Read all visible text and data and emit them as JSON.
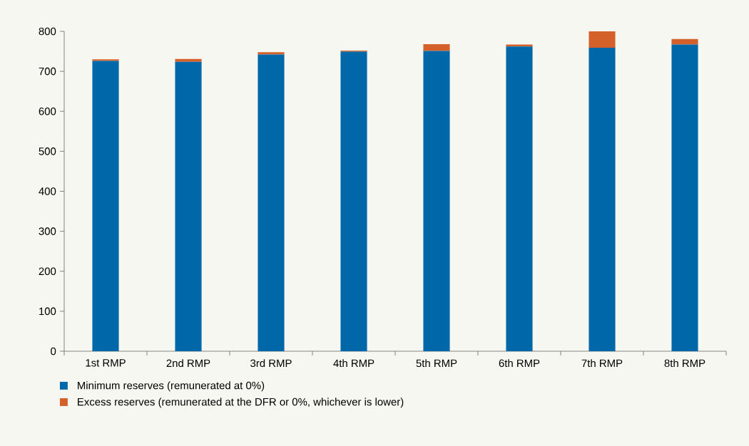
{
  "chart_data": {
    "type": "bar",
    "stacked": true,
    "legend": "bottom",
    "categories": [
      "1st RMP",
      "2nd RMP",
      "3rd RMP",
      "4th RMP",
      "5th RMP",
      "6th RMP",
      "7th RMP",
      "8th RMP"
    ],
    "series": [
      {
        "name": "Minimum reserves (remunerated at 0%)",
        "color": "#0067a8",
        "values": [
          726,
          724,
          742,
          749,
          751,
          762,
          759,
          767
        ]
      },
      {
        "name": "Excess reserves (remunerated at the DFR or 0%, whichever is lower)",
        "color": "#d4602a",
        "values": [
          4,
          7,
          6,
          3,
          17,
          5,
          41,
          14
        ]
      }
    ],
    "ylim": [
      0,
      800
    ],
    "yticks": [
      0,
      100,
      200,
      300,
      400,
      500,
      600,
      700,
      800
    ]
  }
}
